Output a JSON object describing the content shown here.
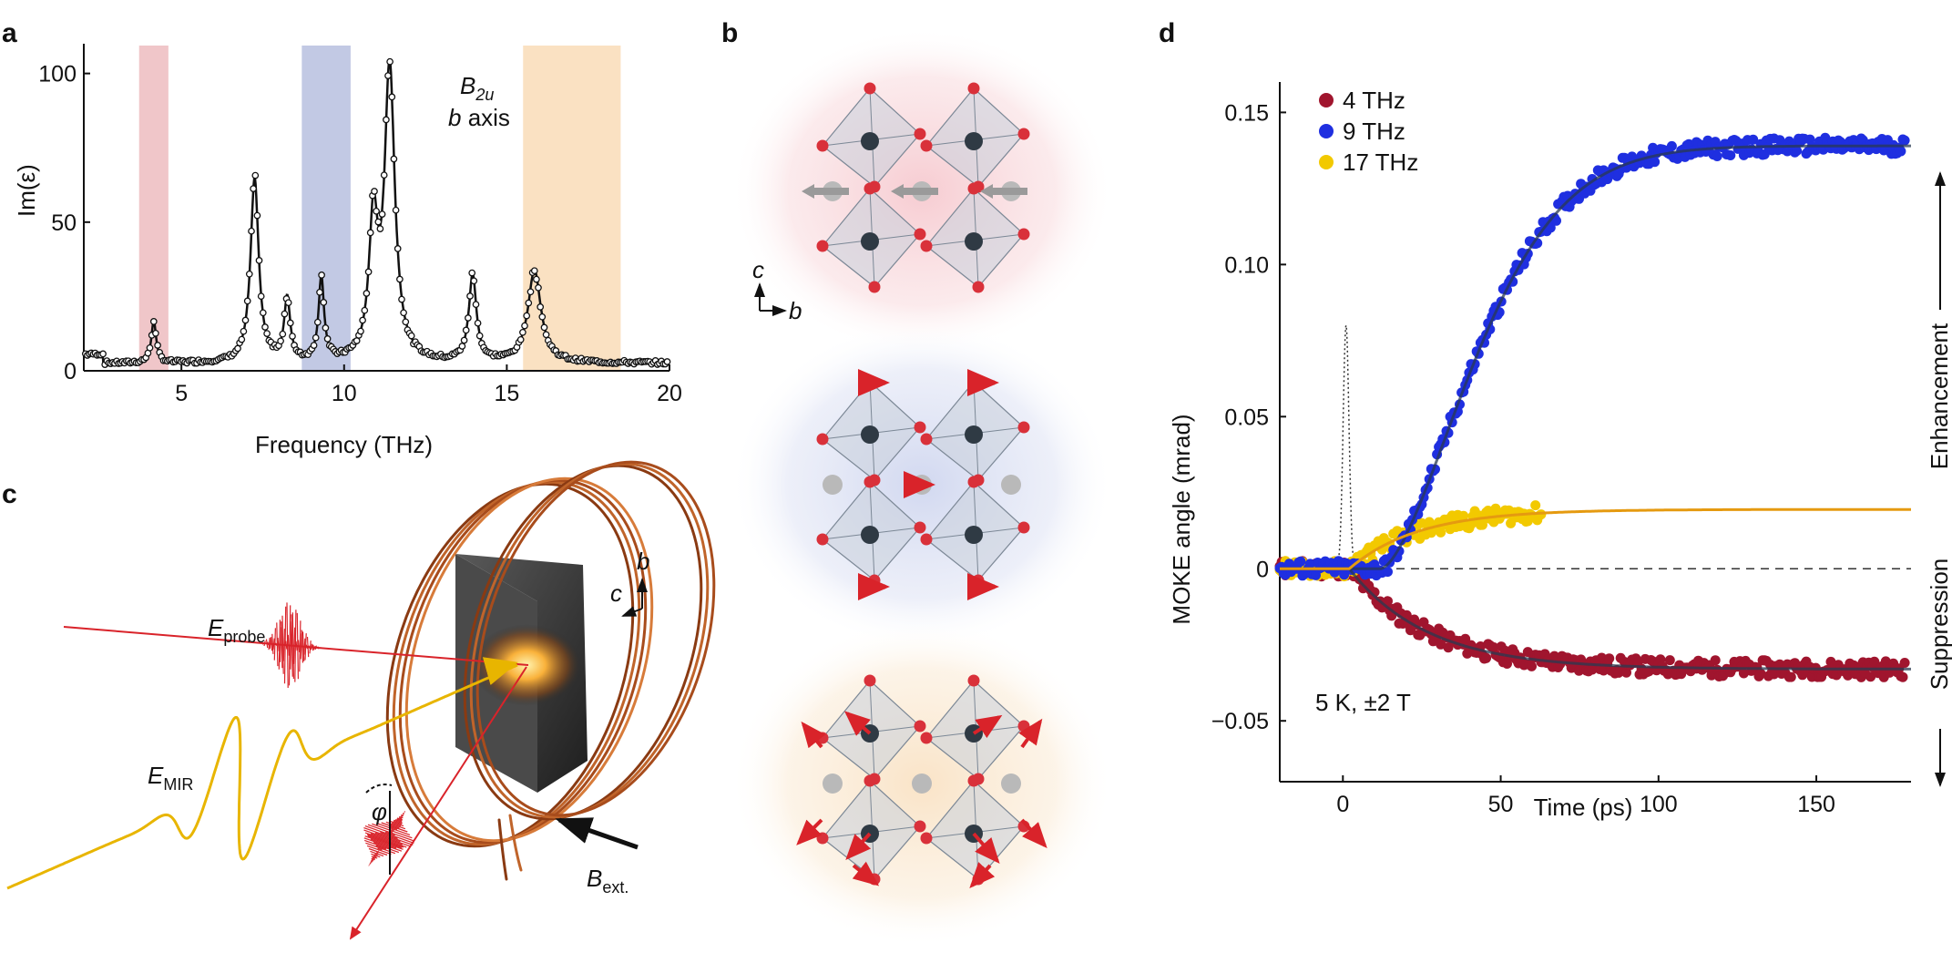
{
  "panels": {
    "a": {
      "label": "a",
      "ylabel": "Im(ε)",
      "xlabel": "Frequency (THz)",
      "annotation_mode": "B",
      "annotation_mode_sub": "2u",
      "annotation_axis": "b axis",
      "shaded_bands": [
        {
          "range": [
            3.7,
            4.6
          ],
          "color": "#e9aeb2"
        },
        {
          "range": [
            8.7,
            10.2
          ],
          "color": "#a8b2d8"
        },
        {
          "range": [
            15.5,
            18.5
          ],
          "color": "#f8d4a8"
        }
      ]
    },
    "b": {
      "label": "b",
      "axis_c": "c",
      "axis_b": "b"
    },
    "c": {
      "label": "c",
      "e_probe": "E",
      "e_probe_sub": "probe",
      "e_mir": "E",
      "e_mir_sub": "MIR",
      "phi": "φ",
      "b_ext": "B",
      "b_ext_sub": "ext.",
      "axis_b": "b",
      "axis_c": "c"
    },
    "d": {
      "label": "d",
      "condition": "5 K, ±2 T",
      "side_up": "Enhancement",
      "side_down": "Suppression"
    }
  },
  "chart_data": [
    {
      "type": "line",
      "panel": "a",
      "title": "",
      "xlabel": "Frequency (THz)",
      "ylabel": "Im(ε)",
      "xlim": [
        2,
        20
      ],
      "ylim": [
        0,
        110
      ],
      "xticks": [
        5,
        10,
        15,
        20
      ],
      "yticks": [
        0,
        50,
        100
      ],
      "peaks": [
        {
          "center": 4.15,
          "height": 14,
          "width": 0.09
        },
        {
          "center": 7.25,
          "height": 62,
          "width": 0.15
        },
        {
          "center": 8.25,
          "height": 21,
          "width": 0.11
        },
        {
          "center": 9.3,
          "height": 28,
          "width": 0.1
        },
        {
          "center": 10.9,
          "height": 45,
          "width": 0.16
        },
        {
          "center": 11.4,
          "height": 98,
          "width": 0.19
        },
        {
          "center": 13.95,
          "height": 29,
          "width": 0.14
        },
        {
          "center": 15.85,
          "height": 31,
          "width": 0.24
        }
      ],
      "baseline": 2.5,
      "series": [
        {
          "name": "measured",
          "style": "open circles"
        },
        {
          "name": "fit",
          "style": "solid line"
        }
      ]
    },
    {
      "type": "scatter",
      "panel": "d",
      "title": "",
      "xlabel": "Time (ps)",
      "ylabel": "MOKE angle (mrad)",
      "xlim": [
        -20,
        180
      ],
      "ylim": [
        -0.07,
        0.16
      ],
      "xticks": [
        0,
        50,
        100,
        150
      ],
      "yticks": [
        -0.05,
        0,
        0.05,
        0.1,
        0.15
      ],
      "legend_position": "top-left",
      "series": [
        {
          "name": "4 THz",
          "color": "#a0152e",
          "plateau": -0.033,
          "rise_ps": 25,
          "data_until_ps": 178
        },
        {
          "name": "9 THz",
          "color": "#1f2fe0",
          "plateau": 0.139,
          "rise_ps": 25,
          "onset_ps": 12,
          "data_until_ps": 178
        },
        {
          "name": "17 THz",
          "color": "#f2c900",
          "fit_color": "#e59a10",
          "plateau": 0.0195,
          "rise_ps": 22,
          "data_until_ps": 63
        }
      ],
      "pump_pulse": {
        "center_ps": 1,
        "peak": 0.08,
        "style": "dotted"
      },
      "zero_line": "dashed"
    }
  ]
}
